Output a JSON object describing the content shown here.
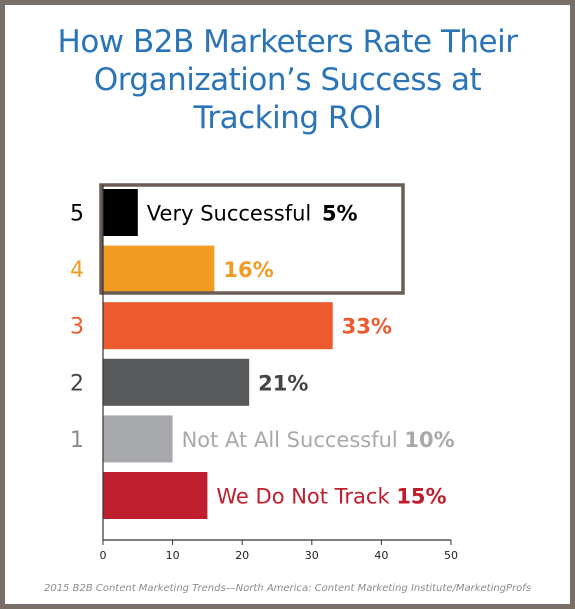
{
  "title_lines": [
    "How B2B Marketers Rate Their",
    "Organization’s Success at",
    "Tracking ROI"
  ],
  "source": "2015 B2B Content Marketing Trends—North America: Content Marketing Institute/MarketingProfs",
  "chart_data": {
    "type": "bar",
    "orientation": "horizontal",
    "categories": [
      "5",
      "4",
      "3",
      "2",
      "1",
      ""
    ],
    "values": [
      5,
      16,
      33,
      21,
      10,
      15
    ],
    "value_labels": [
      "5%",
      "16%",
      "33%",
      "21%",
      "10%",
      "15%"
    ],
    "bar_labels": [
      "Very Successful",
      "",
      "",
      "",
      "Not At All Successful",
      "We Do Not Track"
    ],
    "colors": [
      "#000000",
      "#f19b22",
      "#ec5a2d",
      "#58595b",
      "#a7a9ac",
      "#be1e2d"
    ],
    "category_colors": [
      "#000000",
      "#f19b22",
      "#ec5a2d",
      "#444444",
      "#8c8c8c",
      "#000000"
    ],
    "label_colors": [
      "#000000",
      "#f19b22",
      "#ec5a2d",
      "#444444",
      "#a7a9ac",
      "#be1e2d"
    ],
    "xlim": [
      0,
      50
    ],
    "xticks": [
      "0",
      "10",
      "20",
      "30",
      "40",
      "50"
    ],
    "highlight_box_around": [
      "5",
      "4"
    ],
    "grid": false
  }
}
